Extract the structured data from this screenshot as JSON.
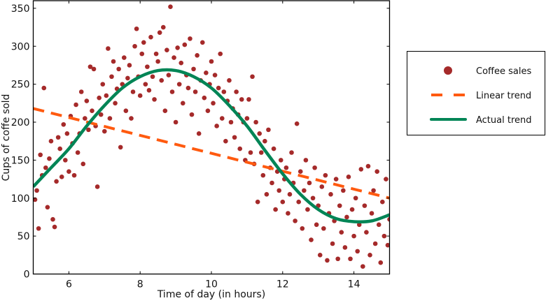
{
  "chart_data": {
    "type": "scatter",
    "title": "",
    "xlabel": "Time of day (in hours)",
    "ylabel": "Cups of coffe sold",
    "xlim": [
      5,
      15
    ],
    "ylim": [
      0,
      360
    ],
    "xticks": [
      6,
      8,
      10,
      12,
      14
    ],
    "yticks": [
      0,
      50,
      100,
      150,
      200,
      250,
      300,
      350
    ],
    "grid": false,
    "legend_placement": "outside-right",
    "colors": {
      "scatter": "#a52a2a",
      "linear": "#ff5a0f",
      "actual": "#008556"
    },
    "legend": [
      "Coffee sales",
      "Linear trend",
      "Actual trend"
    ],
    "series": [
      {
        "name": "Coffee sales",
        "type": "scatter",
        "points": [
          [
            5.05,
            98
          ],
          [
            5.1,
            110
          ],
          [
            5.15,
            60
          ],
          [
            5.2,
            157
          ],
          [
            5.25,
            130
          ],
          [
            5.3,
            245
          ],
          [
            5.35,
            140
          ],
          [
            5.4,
            88
          ],
          [
            5.45,
            152
          ],
          [
            5.5,
            175
          ],
          [
            5.55,
            72
          ],
          [
            5.6,
            62
          ],
          [
            5.65,
            122
          ],
          [
            5.7,
            180
          ],
          [
            5.75,
            165
          ],
          [
            5.8,
            128
          ],
          [
            5.85,
            197
          ],
          [
            5.9,
            150
          ],
          [
            5.95,
            185
          ],
          [
            6.0,
            135
          ],
          [
            6.05,
            208
          ],
          [
            6.1,
            172
          ],
          [
            6.15,
            130
          ],
          [
            6.2,
            223
          ],
          [
            6.25,
            160
          ],
          [
            6.3,
            185
          ],
          [
            6.35,
            240
          ],
          [
            6.4,
            145
          ],
          [
            6.45,
            205
          ],
          [
            6.5,
            228
          ],
          [
            6.55,
            190
          ],
          [
            6.6,
            273
          ],
          [
            6.65,
            215
          ],
          [
            6.7,
            270
          ],
          [
            6.75,
            195
          ],
          [
            6.8,
            115
          ],
          [
            6.85,
            232
          ],
          [
            6.9,
            210
          ],
          [
            6.95,
            250
          ],
          [
            7.0,
            188
          ],
          [
            7.05,
            235
          ],
          [
            7.1,
            297
          ],
          [
            7.15,
            205
          ],
          [
            7.2,
            260
          ],
          [
            7.25,
            280
          ],
          [
            7.3,
            225
          ],
          [
            7.35,
            244
          ],
          [
            7.4,
            270
          ],
          [
            7.45,
            167
          ],
          [
            7.5,
            250
          ],
          [
            7.55,
            285
          ],
          [
            7.6,
            215
          ],
          [
            7.65,
            258
          ],
          [
            7.7,
            275
          ],
          [
            7.75,
            205
          ],
          [
            7.8,
            240
          ],
          [
            7.85,
            300
          ],
          [
            7.9,
            323
          ],
          [
            7.95,
            260
          ],
          [
            8.0,
            235
          ],
          [
            8.05,
            290
          ],
          [
            8.1,
            305
          ],
          [
            8.15,
            250
          ],
          [
            8.2,
            273
          ],
          [
            8.25,
            242
          ],
          [
            8.3,
            312
          ],
          [
            8.35,
            260
          ],
          [
            8.4,
            230
          ],
          [
            8.45,
            290
          ],
          [
            8.5,
            280
          ],
          [
            8.55,
            318
          ],
          [
            8.6,
            255
          ],
          [
            8.65,
            325
          ],
          [
            8.7,
            215
          ],
          [
            8.75,
            295
          ],
          [
            8.8,
            262
          ],
          [
            8.85,
            352
          ],
          [
            8.9,
            240
          ],
          [
            8.95,
            285
          ],
          [
            9.0,
            200
          ],
          [
            9.05,
            298
          ],
          [
            9.1,
            250
          ],
          [
            9.15,
            278
          ],
          [
            9.2,
            225
          ],
          [
            9.25,
            302
          ],
          [
            9.3,
            262
          ],
          [
            9.35,
            245
          ],
          [
            9.4,
            310
          ],
          [
            9.45,
            210
          ],
          [
            9.5,
            270
          ],
          [
            9.55,
            240
          ],
          [
            9.6,
            288
          ],
          [
            9.65,
            185
          ],
          [
            9.7,
            255
          ],
          [
            9.75,
            305
          ],
          [
            9.8,
            232
          ],
          [
            9.85,
            265
          ],
          [
            9.9,
            215
          ],
          [
            9.95,
            250
          ],
          [
            10.0,
            280
          ],
          [
            10.05,
            225
          ],
          [
            10.1,
            262
          ],
          [
            10.15,
            195
          ],
          [
            10.2,
            245
          ],
          [
            10.25,
            290
          ],
          [
            10.3,
            205
          ],
          [
            10.35,
            240
          ],
          [
            10.4,
            175
          ],
          [
            10.45,
            228
          ],
          [
            10.5,
            255
          ],
          [
            10.55,
            200
          ],
          [
            10.6,
            218
          ],
          [
            10.65,
            180
          ],
          [
            10.7,
            240
          ],
          [
            10.75,
            210
          ],
          [
            10.8,
            165
          ],
          [
            10.85,
            230
          ],
          [
            10.9,
            200
          ],
          [
            10.95,
            150
          ],
          [
            11.0,
            205
          ],
          [
            11.05,
            230
          ],
          [
            11.1,
            160
          ],
          [
            11.15,
            260
          ],
          [
            11.2,
            145
          ],
          [
            11.25,
            200
          ],
          [
            11.3,
            95
          ],
          [
            11.35,
            185
          ],
          [
            11.4,
            160
          ],
          [
            11.45,
            130
          ],
          [
            11.5,
            175
          ],
          [
            11.55,
            105
          ],
          [
            11.6,
            190
          ],
          [
            11.65,
            140
          ],
          [
            11.7,
            120
          ],
          [
            11.75,
            165
          ],
          [
            11.8,
            85
          ],
          [
            11.85,
            135
          ],
          [
            11.9,
            110
          ],
          [
            11.95,
            150
          ],
          [
            12.0,
            95
          ],
          [
            12.05,
            125
          ],
          [
            12.1,
            140
          ],
          [
            12.15,
            80
          ],
          [
            12.2,
            105
          ],
          [
            12.25,
            160
          ],
          [
            12.3,
            120
          ],
          [
            12.35,
            70
          ],
          [
            12.4,
            198
          ],
          [
            12.45,
            95
          ],
          [
            12.5,
            135
          ],
          [
            12.55,
            60
          ],
          [
            12.6,
            110
          ],
          [
            12.65,
            150
          ],
          [
            12.7,
            85
          ],
          [
            12.75,
            120
          ],
          [
            12.8,
            45
          ],
          [
            12.85,
            100
          ],
          [
            12.9,
            140
          ],
          [
            12.95,
            65
          ],
          [
            13.0,
            90
          ],
          [
            13.05,
            25
          ],
          [
            13.1,
            115
          ],
          [
            13.15,
            60
          ],
          [
            13.2,
            130
          ],
          [
            13.25,
            18
          ],
          [
            13.3,
            80
          ],
          [
            13.35,
            105
          ],
          [
            13.4,
            40
          ],
          [
            13.45,
            70
          ],
          [
            13.5,
            125
          ],
          [
            13.55,
            20
          ],
          [
            13.6,
            90
          ],
          [
            13.65,
            55
          ],
          [
            13.7,
            110
          ],
          [
            13.75,
            35
          ],
          [
            13.8,
            75
          ],
          [
            13.85,
            128
          ],
          [
            13.9,
            20
          ],
          [
            13.95,
            85
          ],
          [
            14.0,
            50
          ],
          [
            14.05,
            100
          ],
          [
            14.1,
            30
          ],
          [
            14.15,
            65
          ],
          [
            14.2,
            138
          ],
          [
            14.25,
            10
          ],
          [
            14.3,
            90
          ],
          [
            14.35,
            55
          ],
          [
            14.4,
            142
          ],
          [
            14.45,
            25
          ],
          [
            14.5,
            80
          ],
          [
            14.55,
            110
          ],
          [
            14.6,
            40
          ],
          [
            14.65,
            135
          ],
          [
            14.7,
            65
          ],
          [
            14.75,
            15
          ],
          [
            14.8,
            95
          ],
          [
            14.85,
            50
          ],
          [
            14.9,
            125
          ],
          [
            14.95,
            38
          ],
          [
            15.0,
            72
          ]
        ]
      },
      {
        "name": "Linear trend",
        "type": "line",
        "style": "dashed",
        "points": [
          [
            5,
            218
          ],
          [
            15,
            100
          ]
        ]
      },
      {
        "name": "Actual trend",
        "type": "line",
        "style": "solid",
        "points": [
          [
            5,
            115
          ],
          [
            5.5,
            140
          ],
          [
            6,
            165
          ],
          [
            6.5,
            195
          ],
          [
            7,
            222
          ],
          [
            7.5,
            245
          ],
          [
            8,
            260
          ],
          [
            8.5,
            268
          ],
          [
            9,
            268
          ],
          [
            9.5,
            260
          ],
          [
            10,
            245
          ],
          [
            10.5,
            222
          ],
          [
            11,
            195
          ],
          [
            11.5,
            163
          ],
          [
            12,
            132
          ],
          [
            12.5,
            105
          ],
          [
            13,
            85
          ],
          [
            13.5,
            73
          ],
          [
            14,
            69
          ],
          [
            14.5,
            70
          ],
          [
            15,
            78
          ]
        ]
      }
    ]
  }
}
